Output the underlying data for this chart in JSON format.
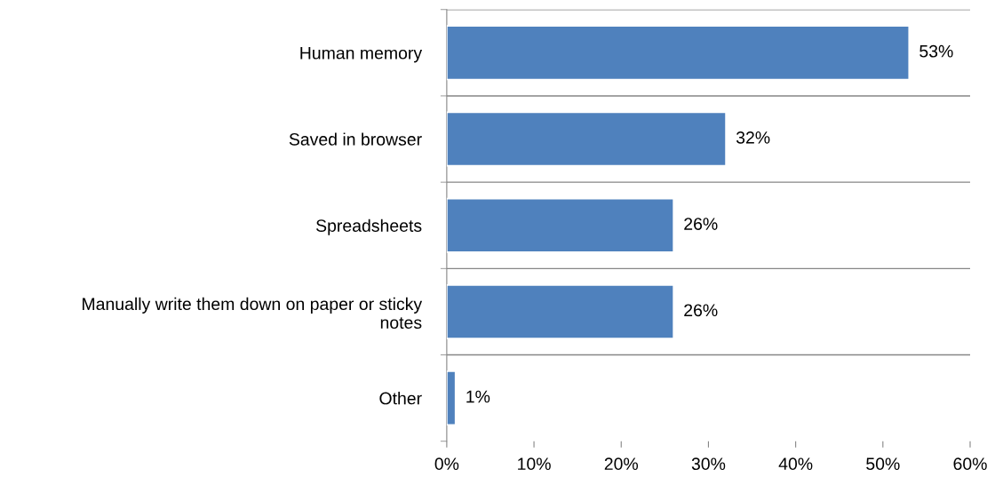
{
  "chart_data": {
    "type": "bar",
    "orientation": "horizontal",
    "categories": [
      "Human memory",
      "Saved in browser",
      "Spreadsheets",
      "Manually write them down on paper or sticky\nnotes",
      "Other"
    ],
    "values": [
      53,
      32,
      26,
      26,
      1
    ],
    "color": "#4f81bd",
    "data_labels": true,
    "value_labels": [
      "53%",
      "32%",
      "26%",
      "26%",
      "1%"
    ],
    "xlim": [
      0,
      60
    ],
    "xticks": [
      {
        "value": 0,
        "label": "0%"
      },
      {
        "value": 10,
        "label": "10%"
      },
      {
        "value": 20,
        "label": "20%"
      },
      {
        "value": 30,
        "label": "30%"
      },
      {
        "value": 40,
        "label": "40%"
      },
      {
        "value": 50,
        "label": "50%"
      },
      {
        "value": 60,
        "label": "60%"
      }
    ],
    "grid": "y",
    "legend": false
  }
}
